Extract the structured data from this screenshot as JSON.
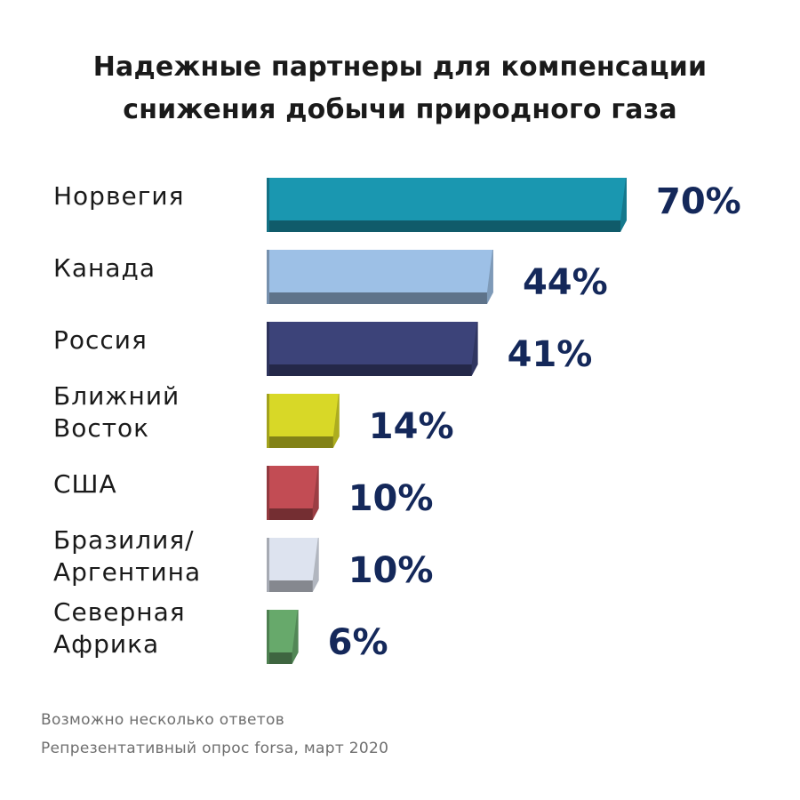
{
  "chart_data": {
    "type": "bar",
    "orientation": "horizontal",
    "title_lines": [
      "Надежные партнеры для компенсации",
      "снижения добычи природного газа"
    ],
    "categories": [
      [
        "Норвегия"
      ],
      [
        "Канада"
      ],
      [
        "Россия"
      ],
      [
        "Ближний",
        "Восток"
      ],
      [
        "США"
      ],
      [
        "Бразилия/",
        "Аргентина"
      ],
      [
        "Северная",
        "Африка"
      ]
    ],
    "values": [
      70,
      44,
      41,
      14,
      10,
      10,
      6
    ],
    "value_labels": [
      "70%",
      "44%",
      "41%",
      "14%",
      "10%",
      "10%",
      "6%"
    ],
    "bar_colors": [
      "#1a97b0",
      "#9dc0e6",
      "#3c4379",
      "#d8d827",
      "#c24c54",
      "#dde3ef",
      "#67a96b"
    ],
    "value_label_color": "#14285a",
    "unit": "%",
    "xlim": [
      0,
      70
    ],
    "grid": false,
    "legend": "none"
  },
  "footnotes": [
    "Возможно несколько ответов",
    "Репрезентативный опрос forsa, март 2020"
  ]
}
